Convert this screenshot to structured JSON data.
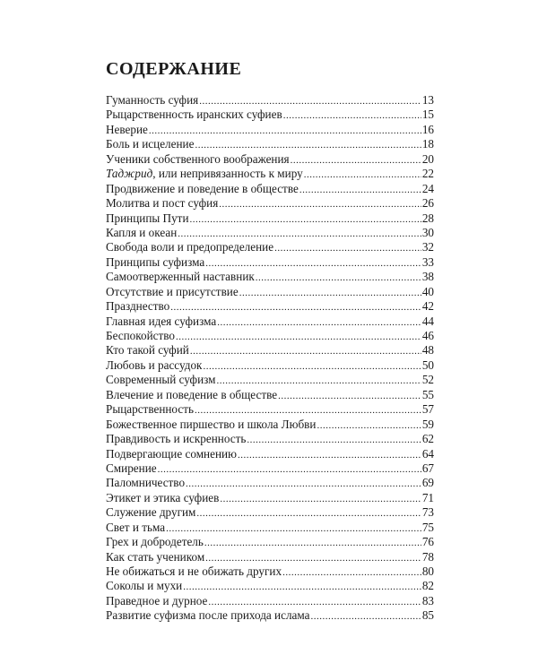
{
  "title": "СОДЕРЖАНИЕ",
  "entries": [
    {
      "text": "Гуманность суфия",
      "page": "13"
    },
    {
      "text": "Рыцарственность иранских суфиев",
      "page": "15"
    },
    {
      "text": "Неверие",
      "page": "16"
    },
    {
      "text": "Боль и исцеление",
      "page": "18"
    },
    {
      "text": "Ученики собственного воображения",
      "page": "20"
    },
    {
      "italic": "Таджрид",
      "text": ", или непривязанность к миру",
      "page": "22"
    },
    {
      "text": "Продвижение и поведение в обществе",
      "page": "24"
    },
    {
      "text": "Молитва и пост суфия",
      "page": "26"
    },
    {
      "text": "Принципы Пути",
      "page": "28"
    },
    {
      "text": "Капля и океан",
      "page": "30"
    },
    {
      "text": "Свобода воли и предопределение",
      "page": "32"
    },
    {
      "text": "Принципы суфизма",
      "page": "33"
    },
    {
      "text": "Самоотверженный наставник",
      "page": "38"
    },
    {
      "text": "Отсутствие и присутствие",
      "page": "40"
    },
    {
      "text": "Празднество",
      "page": "42"
    },
    {
      "text": "Главная идея суфизма",
      "page": "44"
    },
    {
      "text": "Беспокойство",
      "page": "46"
    },
    {
      "text": "Кто такой суфий",
      "page": "48"
    },
    {
      "text": "Любовь и рассудок",
      "page": "50"
    },
    {
      "text": "Современный суфизм",
      "page": "52"
    },
    {
      "text": "Влечение и поведение в обществе",
      "page": "55"
    },
    {
      "text": "Рыцарственность",
      "page": "57"
    },
    {
      "text": "Божественное пиршество и школа Любви",
      "page": "59"
    },
    {
      "text": "Правдивость и искренность",
      "page": "62"
    },
    {
      "text": "Подвергающие сомнению",
      "page": "64"
    },
    {
      "text": "Смирение",
      "page": "67"
    },
    {
      "text": "Паломничество",
      "page": "69"
    },
    {
      "text": "Этикет и этика суфиев",
      "page": "71"
    },
    {
      "text": "Служение другим",
      "page": "73"
    },
    {
      "text": "Свет и тьма",
      "page": "75"
    },
    {
      "text": "Грех и добродетель",
      "page": "76"
    },
    {
      "text": "Как стать учеником",
      "page": "78"
    },
    {
      "text": "Не обижаться и не обижать других",
      "page": "80"
    },
    {
      "text": "Соколы и мухи",
      "page": "82"
    },
    {
      "text": "Праведное и дурное",
      "page": "83"
    },
    {
      "text": "Развитие суфизма после прихода ислама",
      "page": "85"
    }
  ]
}
